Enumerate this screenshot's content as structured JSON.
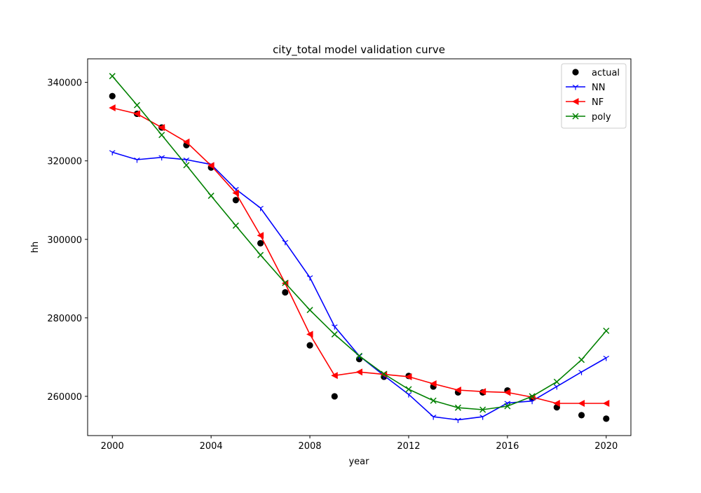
{
  "chart_data": {
    "type": "line",
    "title": "city_total model validation curve",
    "xlabel": "year",
    "ylabel": "hh",
    "xlim": [
      1999.0,
      2021.0
    ],
    "ylim": [
      250000,
      346000
    ],
    "x_ticks": [
      2000,
      2004,
      2008,
      2012,
      2016,
      2020
    ],
    "y_ticks": [
      260000,
      280000,
      300000,
      320000,
      340000
    ],
    "grid": false,
    "legend_position": "top-right",
    "x": [
      2000,
      2001,
      2002,
      2003,
      2004,
      2005,
      2006,
      2007,
      2008,
      2009,
      2010,
      2011,
      2012,
      2013,
      2014,
      2015,
      2016,
      2017,
      2018,
      2019,
      2020
    ],
    "series": [
      {
        "name": "actual",
        "style": "scatter",
        "marker": "circle",
        "color": "#000000",
        "values": [
          336500,
          332000,
          328500,
          324000,
          318300,
          310000,
          299000,
          286500,
          273000,
          260000,
          269500,
          265000,
          265200,
          262500,
          261000,
          261000,
          261500,
          259500,
          257200,
          255200,
          254300
        ]
      },
      {
        "name": "NN",
        "style": "line",
        "marker": "tri-down",
        "color": "#0000ff",
        "values": [
          322200,
          320300,
          320900,
          320300,
          319100,
          312800,
          308000,
          299300,
          290300,
          277800,
          270300,
          265300,
          260500,
          254800,
          254000,
          254800,
          258300,
          258800,
          262500,
          266200,
          269800
        ]
      },
      {
        "name": "NF",
        "style": "line",
        "marker": "triangle-left",
        "color": "#ff0000",
        "values": [
          333500,
          332000,
          328500,
          324800,
          318800,
          311800,
          301000,
          288800,
          275800,
          265300,
          266200,
          265600,
          265000,
          263200,
          261600,
          261200,
          261000,
          259800,
          258200,
          258200,
          258200
        ]
      },
      {
        "name": "poly",
        "style": "line",
        "marker": "x",
        "color": "#008000",
        "values": [
          341600,
          334200,
          326600,
          318900,
          311100,
          303500,
          296000,
          288900,
          282000,
          275800,
          270300,
          265700,
          261800,
          258900,
          257100,
          256600,
          257500,
          260000,
          263700,
          269300,
          276700
        ]
      }
    ]
  }
}
